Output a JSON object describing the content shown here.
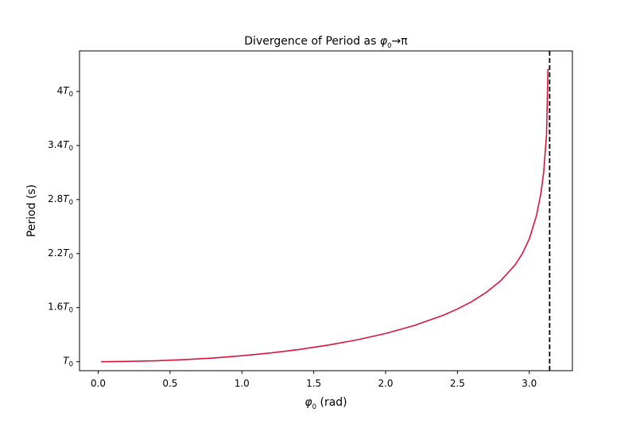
{
  "chart_data": {
    "type": "line",
    "title_prefix": "Divergence of Period as ",
    "title_symbol": "φ",
    "title_sub": "0",
    "title_suffix": "→π",
    "xlabel_symbol": "φ",
    "xlabel_sub": "0",
    "xlabel_suffix": " (rad)",
    "ylabel": "Period (s)",
    "xlim": [
      -0.13,
      3.3
    ],
    "ylim": [
      0.9,
      4.45
    ],
    "x_ticks": [
      {
        "value": 0.0,
        "label": "0.0"
      },
      {
        "value": 0.5,
        "label": "0.5"
      },
      {
        "value": 1.0,
        "label": "1.0"
      },
      {
        "value": 1.5,
        "label": "1.5"
      },
      {
        "value": 2.0,
        "label": "2.0"
      },
      {
        "value": 2.5,
        "label": "2.5"
      },
      {
        "value": 3.0,
        "label": "3.0"
      }
    ],
    "y_ticks": [
      {
        "value": 1.0,
        "coef": "",
        "sym": "T",
        "sub": "0"
      },
      {
        "value": 1.6,
        "coef": "1.6",
        "sym": "T",
        "sub": "0"
      },
      {
        "value": 2.2,
        "coef": "2.2",
        "sym": "T",
        "sub": "0"
      },
      {
        "value": 2.8,
        "coef": "2.8",
        "sym": "T",
        "sub": "0"
      },
      {
        "value": 3.4,
        "coef": "3.4",
        "sym": "T",
        "sub": "0"
      },
      {
        "value": 4.0,
        "coef": "4",
        "sym": "T",
        "sub": "0"
      }
    ],
    "series": [
      {
        "color": "#dc143c",
        "x": [
          0.02,
          0.2,
          0.4,
          0.6,
          0.8,
          1.0,
          1.2,
          1.4,
          1.6,
          1.8,
          2.0,
          2.2,
          2.4,
          2.5,
          2.6,
          2.7,
          2.8,
          2.9,
          2.95,
          3.0,
          3.05,
          3.08,
          3.1,
          3.12,
          3.13
        ],
        "y": [
          1.0,
          1.003,
          1.01,
          1.023,
          1.041,
          1.066,
          1.097,
          1.136,
          1.184,
          1.242,
          1.313,
          1.402,
          1.515,
          1.585,
          1.668,
          1.769,
          1.897,
          2.073,
          2.195,
          2.363,
          2.623,
          2.862,
          3.101,
          3.521,
          4.25
        ]
      }
    ],
    "vline": {
      "x": 3.1416,
      "color": "#000000",
      "style": "dashed"
    },
    "grid": false,
    "legend": "none"
  }
}
